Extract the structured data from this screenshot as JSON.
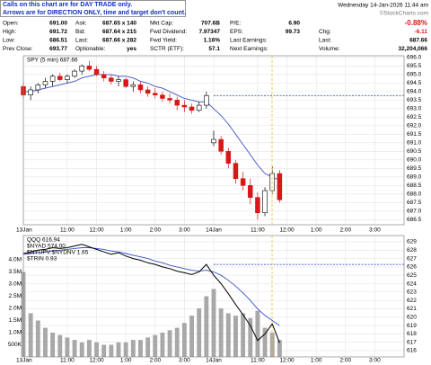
{
  "header": {
    "notice": [
      "Calls on this chart are for DAY TRADE only.",
      "Arrows are for DIRECTION ONLY, time and target don't count."
    ],
    "date": "Wednesday 14-Jan-2026 11:44 am",
    "credit": "©StockCharts.com",
    "rows": [
      [
        {
          "label": "Open:",
          "value": "691.00"
        },
        {
          "label": "Ask:",
          "value": "687.65 x 140"
        },
        {
          "label": "Mkt Cap:",
          "value": "707.6B"
        },
        {
          "label": "P/E:",
          "value": "6.90"
        },
        {
          "value": "-0.88%"
        }
      ],
      [
        {
          "label": "High:",
          "value": "691.72"
        },
        {
          "label": "Bid:",
          "value": "687.64 x 215"
        },
        {
          "label": "Fwd Dividend:",
          "value": "7.97347"
        },
        {
          "label": "EPS:",
          "value": "99.73"
        },
        {
          "label": "Chg:",
          "value": "-6.11"
        }
      ],
      [
        {
          "label": "Low:",
          "value": "686.51"
        },
        {
          "label": "Last:",
          "value": "687.66 x 282"
        },
        {
          "label": "Fwd Yield:",
          "value": "1.16%"
        },
        {
          "label": "Last Earnings:"
        },
        {
          "label": "Last:",
          "value": "687.66"
        }
      ],
      [
        {
          "label": "Prev Close:",
          "value": "693.77"
        },
        {
          "label": "Optionable:",
          "value": "yes"
        },
        {
          "label": "SCTR (ETF):",
          "value": "57.1"
        },
        {
          "label": "Next Earnings:"
        },
        {
          "label": "Volume:",
          "value": "32,204,066"
        }
      ]
    ]
  },
  "chart_data": [
    {
      "type": "candlestick",
      "title": "SPY (5 min) 687.66",
      "x": [
        0,
        0.25,
        0.5,
        0.75,
        1,
        1.25,
        1.5,
        1.75,
        2,
        2.25,
        2.5,
        2.75,
        3,
        3.25,
        3.5,
        3.75,
        4,
        4.25,
        4.5,
        4.75,
        5,
        5.25,
        5.5,
        5.75,
        6,
        6.25,
        6.5,
        6.75,
        7,
        7.25,
        7.5,
        7.75,
        8,
        8.25,
        8.5,
        8.75
      ],
      "open": [
        694.3,
        693.8,
        694.1,
        694.4,
        694.6,
        694.9,
        694.7,
        694.9,
        695.2,
        695.5,
        695.3,
        695.0,
        694.8,
        694.6,
        694.7,
        694.3,
        694.4,
        694.1,
        693.9,
        693.8,
        693.6,
        693.5,
        693.2,
        693.1,
        692.9,
        693.2,
        691.0,
        691.2,
        690.5,
        689.8,
        688.9,
        688.5,
        687.8,
        686.9,
        688.2,
        689.2
      ],
      "high": [
        694.6,
        694.3,
        694.5,
        694.8,
        695.0,
        695.1,
        695.0,
        695.3,
        695.6,
        695.8,
        695.5,
        695.2,
        695.0,
        694.9,
        694.8,
        694.6,
        694.6,
        694.3,
        694.2,
        694.0,
        693.9,
        693.7,
        693.5,
        693.3,
        693.4,
        694.0,
        691.72,
        691.4,
        690.7,
        690.0,
        689.3,
        688.9,
        688.1,
        688.4,
        689.6,
        689.4
      ],
      "low": [
        693.6,
        693.5,
        693.9,
        694.2,
        694.3,
        694.6,
        694.5,
        694.8,
        695.0,
        695.2,
        694.9,
        694.6,
        694.4,
        694.3,
        694.2,
        694.0,
        693.9,
        693.7,
        693.6,
        693.4,
        693.3,
        692.9,
        692.8,
        692.7,
        692.8,
        693.0,
        690.8,
        690.3,
        689.5,
        688.6,
        688.2,
        687.4,
        686.51,
        686.7,
        688.0,
        687.5
      ],
      "close": [
        693.8,
        694.1,
        694.4,
        694.6,
        694.9,
        694.7,
        694.9,
        695.2,
        695.5,
        695.3,
        695.0,
        694.8,
        694.6,
        694.7,
        694.3,
        694.4,
        694.1,
        693.9,
        693.8,
        693.6,
        693.5,
        693.2,
        693.1,
        692.9,
        693.2,
        693.77,
        691.2,
        690.5,
        689.8,
        688.9,
        688.5,
        687.8,
        686.9,
        688.2,
        689.2,
        687.66
      ],
      "ma": [
        694.0,
        694.0,
        694.1,
        694.2,
        694.3,
        694.4,
        694.5,
        694.6,
        694.8,
        694.9,
        695.0,
        695.0,
        695.0,
        694.9,
        694.9,
        694.8,
        694.6,
        694.5,
        694.3,
        694.2,
        694.0,
        693.8,
        693.6,
        693.5,
        693.4,
        693.4,
        693.0,
        692.6,
        692.1,
        691.5,
        690.9,
        690.3,
        689.7,
        689.2,
        689.0,
        688.8
      ],
      "ma_color": "#3b4fc4",
      "up_color": "#000000",
      "down_color": "#d81818",
      "ref_line": 693.77,
      "xlim": [
        0,
        13
      ],
      "xticks": [
        {
          "value": 0,
          "label": "13Jan"
        },
        {
          "value": 1.5,
          "label": "11:00"
        },
        {
          "value": 2.5,
          "label": "12:00"
        },
        {
          "value": 3.5,
          "label": "1:00"
        },
        {
          "value": 4.5,
          "label": "2:00"
        },
        {
          "value": 5.5,
          "label": "3:00"
        },
        {
          "value": 6.5,
          "label": "14Jan"
        },
        {
          "value": 8,
          "label": "11:00"
        },
        {
          "value": 9,
          "label": "12:00"
        },
        {
          "value": 10,
          "label": "1:00"
        },
        {
          "value": 11,
          "label": "2:00"
        },
        {
          "value": 12,
          "label": "3:00"
        }
      ],
      "ylim": [
        686.2,
        696.1
      ],
      "yticks": [
        {
          "value": 686.5,
          "label": "686.5"
        },
        {
          "value": 687,
          "label": "687.0"
        },
        687.5,
        {
          "value": 688,
          "label": "688.0"
        },
        688.5,
        {
          "value": 689,
          "label": "689.0"
        },
        689.5,
        {
          "value": 690,
          "label": "690.0"
        },
        690.5,
        {
          "value": 691,
          "label": "691.0"
        },
        691.5,
        {
          "value": 692,
          "label": "692.0"
        },
        692.5,
        {
          "value": 693,
          "label": "693.0"
        },
        693.5,
        {
          "value": 694,
          "label": "694.0"
        },
        694.5,
        {
          "value": 695,
          "label": "695.0"
        },
        695.5,
        {
          "value": 696,
          "label": "696.0"
        }
      ],
      "grid": true
    },
    {
      "type": "line",
      "x": [
        0,
        0.25,
        0.5,
        0.75,
        1,
        1.25,
        1.5,
        1.75,
        2,
        2.25,
        2.5,
        2.75,
        3,
        3.25,
        3.5,
        3.75,
        4,
        4.25,
        4.5,
        4.75,
        5,
        5.25,
        5.5,
        5.75,
        6,
        6.25,
        6.5,
        6.75,
        7,
        7.25,
        7.5,
        7.75,
        8,
        8.25,
        8.5,
        8.75
      ],
      "series": [
        {
          "type": "bar",
          "axis": "y2",
          "color": "#a8a8a8",
          "values": [
            3500000,
            1800000,
            1500000,
            1200000,
            1000000,
            900000,
            800000,
            700000,
            600000,
            700000,
            600000,
            500000,
            500000,
            600000,
            600000,
            700000,
            700000,
            800000,
            900000,
            1000000,
            1100000,
            1200000,
            1400000,
            1700000,
            2000000,
            2500000,
            2800000,
            2000000,
            1800000,
            1700000,
            1800000,
            1600000,
            1900000,
            1200000,
            1000000,
            700000
          ]
        },
        {
          "color": "#3b4fc4",
          "values": [
            627.5,
            627.6,
            627.7,
            627.8,
            627.9,
            628.0,
            628.1,
            628.2,
            628.3,
            628.3,
            628.2,
            628.1,
            627.9,
            627.8,
            627.6,
            627.4,
            627.2,
            627.0,
            626.7,
            626.5,
            626.2,
            626.0,
            625.8,
            625.6,
            625.5,
            625.6,
            625.4,
            625.0,
            624.4,
            623.7,
            622.9,
            622.0,
            621.0,
            620.2,
            619.6,
            619.0
          ]
        },
        {
          "name": "QQQ 616.94",
          "color": "#000000",
          "values": [
            627.6,
            627.8,
            628.0,
            628.1,
            628.3,
            628.2,
            628.3,
            628.5,
            628.7,
            628.4,
            628.1,
            627.8,
            627.5,
            627.7,
            627.3,
            627.0,
            626.8,
            626.5,
            626.3,
            626.0,
            625.8,
            625.5,
            625.3,
            625.1,
            625.4,
            626.3,
            625.0,
            624.0,
            622.8,
            621.5,
            620.3,
            619.0,
            617.2,
            618.0,
            619.2,
            616.94
          ]
        }
      ],
      "annotations": [
        "$NYAD 574.00",
        "$NYUPV:$NYDNV 1.65",
        "$TRIN 0.93"
      ],
      "ref_line": 626.3,
      "xlim": [
        0,
        13
      ],
      "xticks": [
        {
          "value": 0,
          "label": "13Jan"
        },
        {
          "value": 1.5,
          "label": "11:00"
        },
        {
          "value": 2.5,
          "label": "12:00"
        },
        {
          "value": 3.5,
          "label": "1:00"
        },
        {
          "value": 4.5,
          "label": "2:00"
        },
        {
          "value": 5.5,
          "label": "3:00"
        },
        {
          "value": 6.5,
          "label": "14Jan"
        },
        {
          "value": 8,
          "label": "11:00"
        },
        {
          "value": 9,
          "label": "12:00"
        },
        {
          "value": 10,
          "label": "1:00"
        },
        {
          "value": 11,
          "label": "2:00"
        },
        {
          "value": 12,
          "label": "3:00"
        }
      ],
      "ylim": [
        615.25,
        629.75
      ],
      "yticks": [
        616,
        617,
        618,
        619,
        620,
        621,
        622,
        623,
        624,
        625,
        626,
        627,
        628,
        629
      ],
      "y2lim": [
        0,
        5000000
      ],
      "y2ticks": [
        {
          "value": 500000,
          "label": "500K"
        },
        {
          "value": 1000000,
          "label": "1.0M"
        },
        {
          "value": 1500000,
          "label": "1.5M"
        },
        {
          "value": 2000000,
          "label": "2.0M"
        },
        {
          "value": 2500000,
          "label": "2.5M"
        },
        {
          "value": 3000000,
          "label": "3.0M"
        },
        {
          "value": 3500000,
          "label": "3.5M"
        },
        {
          "value": 4000000,
          "label": "4.0M"
        }
      ],
      "grid": true
    }
  ]
}
